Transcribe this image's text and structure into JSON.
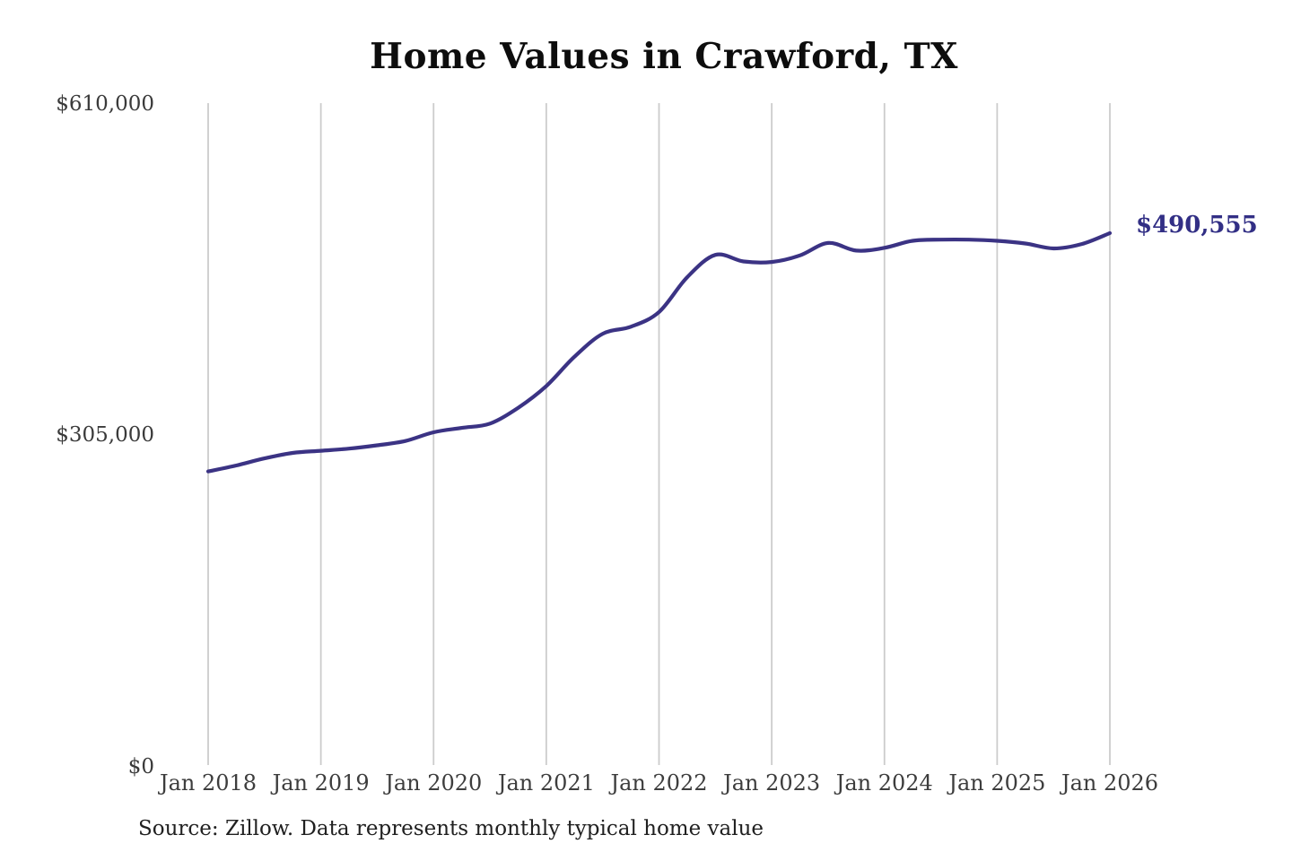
{
  "title": "Home Values in Crawford, TX",
  "source_note": "Source: Zillow. Data represents monthly typical home value",
  "end_label": "$490,555",
  "colors": {
    "line": "#3b3384",
    "end_label_text": "#322f85",
    "gridline": "#cccccc",
    "axis_text": "#3a3a3a",
    "title_text": "#0d0d0d"
  },
  "y_axis": {
    "tick_labels": [
      "$0",
      "$305,000",
      "$610,000"
    ]
  },
  "x_axis": {
    "tick_labels": [
      "Jan 2018",
      "Jan 2019",
      "Jan 2020",
      "Jan 2021",
      "Jan 2022",
      "Jan 2023",
      "Jan 2024",
      "Jan 2025",
      "Jan 2026"
    ]
  },
  "chart_data": {
    "type": "line",
    "title": "Home Values in Crawford, TX",
    "series_name": "Monthly typical home value (USD)",
    "x": [
      2018.0,
      2018.25,
      2018.5,
      2018.75,
      2019.0,
      2019.25,
      2019.5,
      2019.75,
      2020.0,
      2020.25,
      2020.5,
      2020.75,
      2021.0,
      2021.25,
      2021.5,
      2021.75,
      2022.0,
      2022.25,
      2022.5,
      2022.75,
      2023.0,
      2023.25,
      2023.5,
      2023.75,
      2024.0,
      2024.25,
      2024.5,
      2024.75,
      2025.0,
      2025.25,
      2025.5,
      2025.75,
      2026.0
    ],
    "values": [
      271500,
      277000,
      283500,
      288500,
      290500,
      292500,
      295500,
      299500,
      307500,
      311500,
      315500,
      330000,
      350000,
      377000,
      398000,
      404500,
      418000,
      450000,
      470500,
      464500,
      464000,
      470000,
      481500,
      474500,
      477000,
      483500,
      484500,
      484500,
      483500,
      481000,
      476500,
      480500,
      490555
    ],
    "final_value": 490555,
    "ylim": [
      0,
      610000
    ],
    "y_tick_values": [
      0,
      305000,
      610000
    ],
    "x_tick_years": [
      2018,
      2019,
      2020,
      2021,
      2022,
      2023,
      2024,
      2025,
      2026
    ],
    "grid": "vertical-only",
    "legend": "none"
  }
}
